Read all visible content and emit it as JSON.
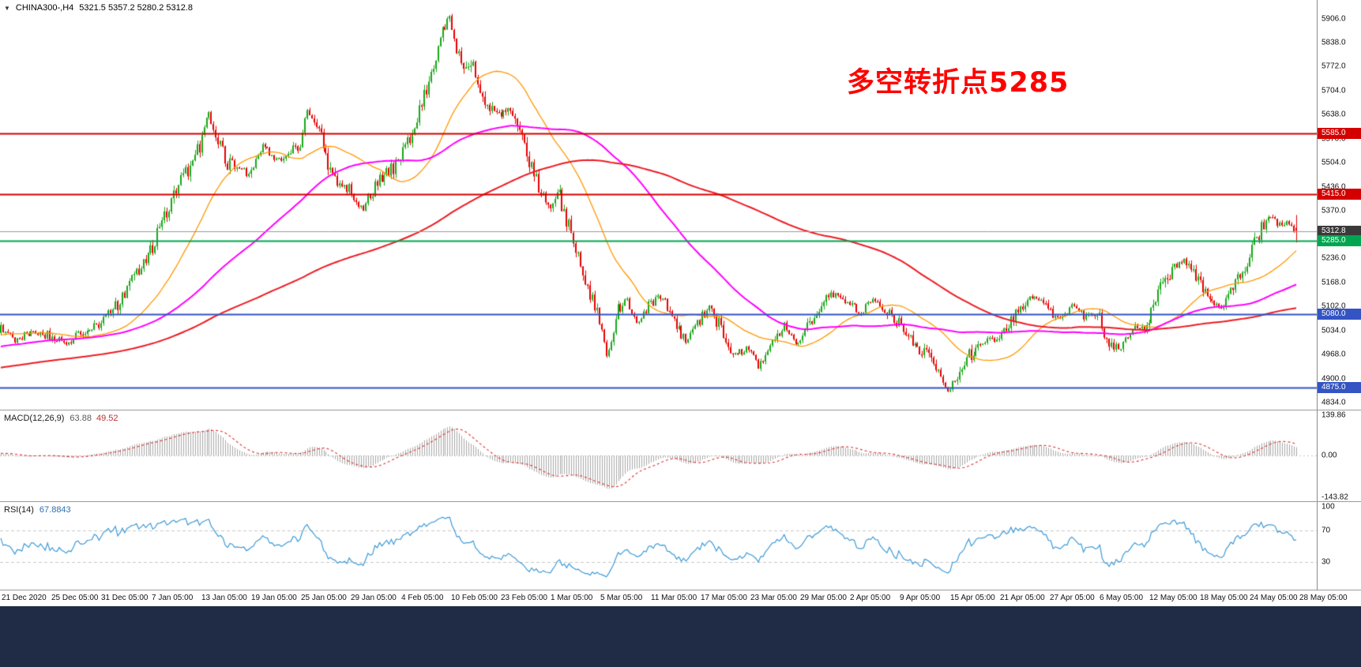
{
  "bottom_bar": {
    "color": "#202B45"
  },
  "chart_data": {
    "type": "candlestick",
    "title": "CHINA300-,H4",
    "symbol": "CHINA300-",
    "timeframe": "H4",
    "dropdown_glyph": "▼",
    "ohlc_readout": "5321.5 5357.2 5280.2 5312.8",
    "last_candle": {
      "open": 5321.5,
      "high": 5357.2,
      "low": 5280.2,
      "close": 5312.8
    },
    "annotation": {
      "text": "多空转折点5285",
      "color": "#FF0000"
    },
    "bull_color": "#18A818",
    "bear_color": "#E60000",
    "price_axis": {
      "range": [
        4822,
        5945
      ],
      "ticks": [
        "5906.0",
        "5838.0",
        "5772.0",
        "5704.0",
        "5638.0",
        "5570.0",
        "5504.0",
        "5436.0",
        "5370.0",
        "5236.0",
        "5168.0",
        "5102.0",
        "5034.0",
        "4968.0",
        "4900.0",
        "4834.0"
      ]
    },
    "time_axis": {
      "labels": [
        "21 Dec 2020",
        "25 Dec 05:00",
        "31 Dec 05:00",
        "7 Jan 05:00",
        "13 Jan 05:00",
        "19 Jan 05:00",
        "25 Jan 05:00",
        "29 Jan 05:00",
        "4 Feb 05:00",
        "10 Feb 05:00",
        "23 Feb 05:00",
        "1 Mar 05:00",
        "5 Mar 05:00",
        "11 Mar 05:00",
        "17 Mar 05:00",
        "23 Mar 05:00",
        "29 Mar 05:00",
        "2 Apr 05:00",
        "9 Apr 05:00",
        "15 Apr 05:00",
        "21 Apr 05:00",
        "27 Apr 05:00",
        "6 May 05:00",
        "12 May 05:00",
        "18 May 05:00",
        "24 May 05:00",
        "28 May 05:00"
      ]
    },
    "horizontal_lines": [
      {
        "value": 5585.0,
        "label": "5585.0",
        "color": "#D40000",
        "badge": "#D40000",
        "width": 2,
        "role": "resistance"
      },
      {
        "value": 5415.0,
        "label": "5415.0",
        "color": "#D40000",
        "badge": "#D40000",
        "width": 2,
        "role": "resistance"
      },
      {
        "value": 5312.8,
        "label": "5312.8",
        "color": "#999999",
        "badge": "#3A3A3A",
        "width": 1,
        "role": "current-price"
      },
      {
        "value": 5285.0,
        "label": "5285.0",
        "color": "#00A550",
        "badge": "#00A550",
        "width": 2,
        "role": "pivot"
      },
      {
        "value": 5080.0,
        "label": "5080.0",
        "color": "#3354C2",
        "badge": "#3354C2",
        "width": 2,
        "role": "support"
      },
      {
        "value": 4875.0,
        "label": "4875.0",
        "color": "#3354C2",
        "badge": "#3354C2",
        "width": 2,
        "role": "support"
      }
    ],
    "moving_averages": [
      {
        "period": 34,
        "color": "#FF9800",
        "width": 1.3
      },
      {
        "period": 89,
        "color": "#FF00FF",
        "width": 2
      },
      {
        "period": 200,
        "color": "#ED1C24",
        "width": 2
      }
    ],
    "candles": {
      "visible": 555,
      "warmup": 220,
      "seed": 9,
      "right_gap": 24
    },
    "pre_anchors": [
      [
        -0.4,
        4800
      ],
      [
        -0.3,
        4860
      ],
      [
        -0.2,
        4915
      ],
      [
        -0.1,
        4975
      ],
      [
        -0.04,
        5015
      ],
      [
        -0.005,
        5035
      ]
    ],
    "price_path_anchors": [
      [
        0,
        5040
      ],
      [
        0.012,
        5005
      ],
      [
        0.024,
        5035
      ],
      [
        0.0385,
        5020
      ],
      [
        0.05,
        4995
      ],
      [
        0.062,
        5030
      ],
      [
        0.077,
        5055
      ],
      [
        0.09,
        5105
      ],
      [
        0.1154,
        5255
      ],
      [
        0.132,
        5400
      ],
      [
        0.145,
        5490
      ],
      [
        0.154,
        5555
      ],
      [
        0.16,
        5645
      ],
      [
        0.168,
        5560
      ],
      [
        0.175,
        5500
      ],
      [
        0.1923,
        5470
      ],
      [
        0.203,
        5555
      ],
      [
        0.212,
        5505
      ],
      [
        0.2308,
        5555
      ],
      [
        0.2365,
        5645
      ],
      [
        0.245,
        5600
      ],
      [
        0.255,
        5470
      ],
      [
        0.2692,
        5425
      ],
      [
        0.279,
        5375
      ],
      [
        0.29,
        5445
      ],
      [
        0.3077,
        5505
      ],
      [
        0.32,
        5615
      ],
      [
        0.331,
        5735
      ],
      [
        0.34,
        5855
      ],
      [
        0.3462,
        5915
      ],
      [
        0.352,
        5825
      ],
      [
        0.358,
        5745
      ],
      [
        0.3635,
        5795
      ],
      [
        0.371,
        5695
      ],
      [
        0.3846,
        5635
      ],
      [
        0.393,
        5665
      ],
      [
        0.404,
        5555
      ],
      [
        0.414,
        5445
      ],
      [
        0.4231,
        5385
      ],
      [
        0.43,
        5425
      ],
      [
        0.441,
        5295
      ],
      [
        0.451,
        5175
      ],
      [
        0.4615,
        5075
      ],
      [
        0.468,
        4960
      ],
      [
        0.4755,
        5085
      ],
      [
        0.483,
        5120
      ],
      [
        0.491,
        5055
      ],
      [
        0.5,
        5100
      ],
      [
        0.509,
        5135
      ],
      [
        0.519,
        5060
      ],
      [
        0.529,
        5005
      ],
      [
        0.5385,
        5060
      ],
      [
        0.547,
        5100
      ],
      [
        0.556,
        5035
      ],
      [
        0.565,
        4955
      ],
      [
        0.5769,
        4990
      ],
      [
        0.585,
        4930
      ],
      [
        0.5955,
        5005
      ],
      [
        0.605,
        5050
      ],
      [
        0.6154,
        4995
      ],
      [
        0.625,
        5060
      ],
      [
        0.635,
        5115
      ],
      [
        0.644,
        5140
      ],
      [
        0.6538,
        5110
      ],
      [
        0.664,
        5085
      ],
      [
        0.674,
        5120
      ],
      [
        0.6923,
        5060
      ],
      [
        0.702,
        5015
      ],
      [
        0.712,
        4975
      ],
      [
        0.721,
        4935
      ],
      [
        0.7308,
        4868
      ],
      [
        0.739,
        4905
      ],
      [
        0.747,
        4960
      ],
      [
        0.756,
        5005
      ],
      [
        0.7692,
        5000
      ],
      [
        0.779,
        5050
      ],
      [
        0.789,
        5105
      ],
      [
        0.799,
        5135
      ],
      [
        0.8077,
        5090
      ],
      [
        0.817,
        5060
      ],
      [
        0.827,
        5105
      ],
      [
        0.837,
        5070
      ],
      [
        0.8462,
        5090
      ],
      [
        0.855,
        5000
      ],
      [
        0.864,
        4985
      ],
      [
        0.874,
        5030
      ],
      [
        0.8846,
        5060
      ],
      [
        0.894,
        5145
      ],
      [
        0.904,
        5205
      ],
      [
        0.914,
        5235
      ],
      [
        0.9231,
        5170
      ],
      [
        0.932,
        5130
      ],
      [
        0.942,
        5100
      ],
      [
        0.951,
        5150
      ],
      [
        0.9615,
        5210
      ],
      [
        0.97,
        5300
      ],
      [
        0.979,
        5350
      ],
      [
        0.988,
        5325
      ],
      [
        0.9945,
        5335
      ],
      [
        1,
        5313
      ]
    ],
    "macd": {
      "label": "MACD(12,26,9)",
      "value_main": "63.88",
      "value_signal": "49.52",
      "fast": 12,
      "slow": 26,
      "signal": 9,
      "axis_ticks": [
        "139.86",
        "0.00",
        "-143.82"
      ],
      "histogram_color": "#A8A8A8",
      "signal_color": "#E03030"
    },
    "rsi": {
      "label": "RSI(14)",
      "value": "67.8843",
      "period": 14,
      "axis_ticks": [
        "100",
        "70",
        "30"
      ],
      "levels": [
        70,
        30
      ],
      "line_color": "#3E9BD8"
    }
  }
}
